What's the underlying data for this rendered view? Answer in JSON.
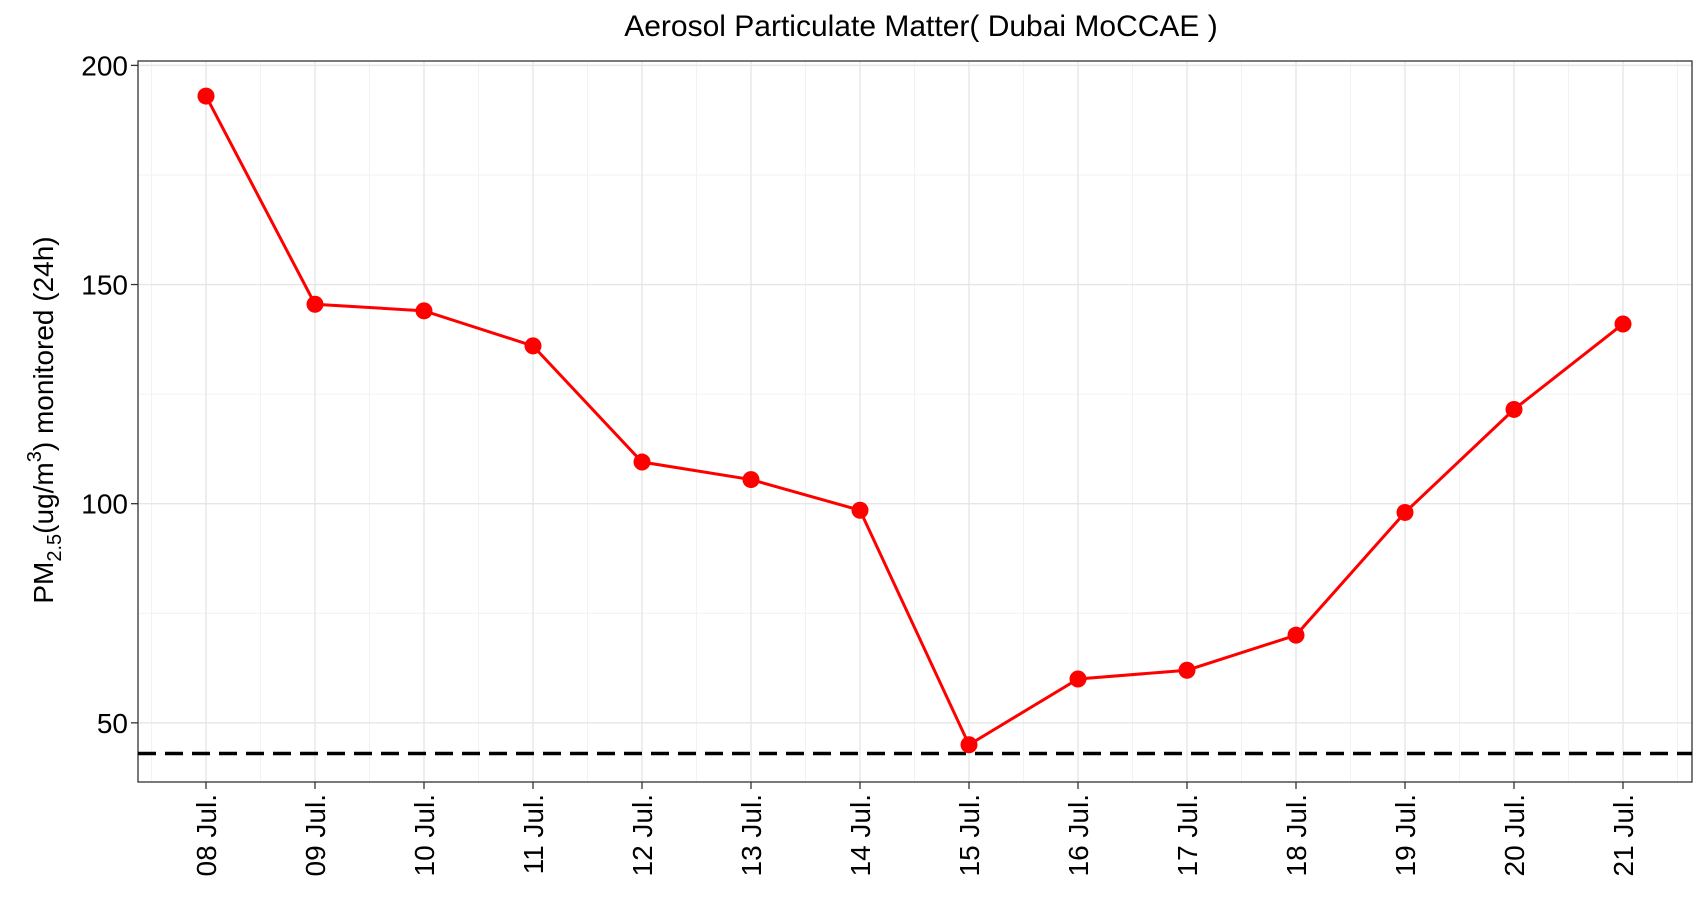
{
  "chart_data": {
    "type": "line",
    "title": "Aerosol Particulate Matter( Dubai MoCCAE )",
    "ylabel": {
      "prefix": "PM",
      "subscript": "2.5",
      "middle": "(ug/m",
      "superscript": "3",
      "suffix": ") monitored (24h)"
    },
    "xlabel": "",
    "categories": [
      "08 Jul.",
      "09 Jul.",
      "10 Jul.",
      "11 Jul.",
      "12 Jul.",
      "13 Jul.",
      "14 Jul.",
      "15 Jul.",
      "16 Jul.",
      "17 Jul.",
      "18 Jul.",
      "19 Jul.",
      "20 Jul.",
      "21 Jul."
    ],
    "series": [
      {
        "values": [
          193,
          145.5,
          144,
          136,
          109.5,
          105.5,
          98.5,
          45,
          60,
          62,
          70,
          98,
          121.5,
          141
        ],
        "color": "#ff0000"
      }
    ],
    "reference_line": {
      "value": 43,
      "style": "dashed",
      "color": "#000000"
    },
    "yticks": [
      50,
      100,
      150,
      200
    ],
    "ylim": [
      36.5,
      201
    ],
    "grid": true
  }
}
